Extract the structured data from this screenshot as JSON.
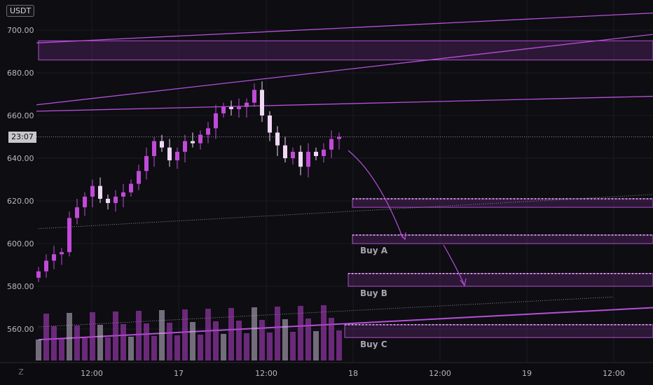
{
  "chart_data": {
    "type": "candlestick",
    "unit": "USDT",
    "current_price_label": "23:07",
    "current_price": 650,
    "ylim": [
      545,
      712
    ],
    "y_ticks": [
      "700.00",
      "680.00",
      "660.00",
      "640.00",
      "620.00",
      "600.00",
      "580.00",
      "560.00"
    ],
    "x_ticks": [
      "12:00",
      "17",
      "12:00",
      "18",
      "12:00",
      "19",
      "12:00"
    ],
    "x_range_hours": [
      0,
      70
    ],
    "candles": [
      {
        "t": 0,
        "c": 587
      },
      {
        "t": 1,
        "c": 592
      },
      {
        "t": 2,
        "c": 595
      },
      {
        "t": 3,
        "c": 596
      },
      {
        "t": 4,
        "c": 612
      },
      {
        "t": 5,
        "c": 617
      },
      {
        "t": 6,
        "c": 622
      },
      {
        "t": 7,
        "c": 627
      },
      {
        "t": 8,
        "c": 621
      },
      {
        "t": 9,
        "c": 619
      },
      {
        "t": 10,
        "c": 622
      },
      {
        "t": 11,
        "c": 624
      },
      {
        "t": 12,
        "c": 628
      },
      {
        "t": 13,
        "c": 634
      },
      {
        "t": 14,
        "c": 641
      },
      {
        "t": 15,
        "c": 648
      },
      {
        "t": 16,
        "c": 645
      },
      {
        "t": 17,
        "c": 639
      },
      {
        "t": 18,
        "c": 643
      },
      {
        "t": 19,
        "c": 648
      },
      {
        "t": 20,
        "c": 647
      },
      {
        "t": 21,
        "c": 651
      },
      {
        "t": 22,
        "c": 654
      },
      {
        "t": 23,
        "c": 661
      },
      {
        "t": 24,
        "c": 664
      },
      {
        "t": 25,
        "c": 663
      },
      {
        "t": 26,
        "c": 664
      },
      {
        "t": 27,
        "c": 666
      },
      {
        "t": 28,
        "c": 672
      },
      {
        "t": 29,
        "c": 660
      },
      {
        "t": 30,
        "c": 652
      },
      {
        "t": 31,
        "c": 646
      },
      {
        "t": 32,
        "c": 640
      },
      {
        "t": 33,
        "c": 643
      },
      {
        "t": 34,
        "c": 636
      },
      {
        "t": 35,
        "c": 643
      },
      {
        "t": 36,
        "c": 641
      },
      {
        "t": 37,
        "c": 644
      },
      {
        "t": 38,
        "c": 649
      },
      {
        "t": 39,
        "c": 650
      }
    ],
    "trendlines": [
      {
        "y0": 694,
        "y1": 708
      },
      {
        "y0": 665,
        "y1": 698
      },
      {
        "y0": 662,
        "y1": 669
      },
      {
        "y0": 607,
        "y1": 623
      },
      {
        "y0": 561,
        "y1": 575
      },
      {
        "y0": 555,
        "y1": 570
      }
    ],
    "zones": [
      {
        "top": 695,
        "bottom": 686,
        "label": ""
      },
      {
        "top": 621,
        "bottom": 617,
        "label": ""
      },
      {
        "top": 604,
        "bottom": 600,
        "label": "Buy A"
      },
      {
        "top": 586,
        "bottom": 580,
        "label": "Buy B"
      },
      {
        "top": 562,
        "bottom": 556,
        "label": "Buy C"
      }
    ],
    "annotations": []
  },
  "ui": {
    "zoom_label": "Z"
  }
}
